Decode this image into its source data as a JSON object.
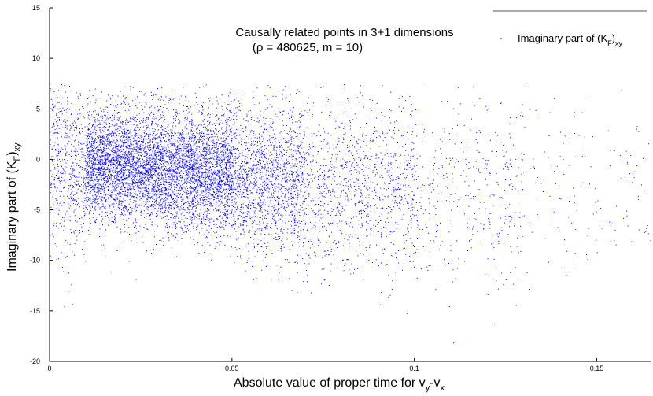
{
  "chart_data": {
    "type": "scatter",
    "title_line1": "Causally related points in 3+1 dimensions",
    "title_line2": "(ρ = 480625, m = 10)",
    "xlabel": {
      "main": "Absolute value of proper time for v",
      "sub1": "y",
      "mid": "-v",
      "sub2": "x"
    },
    "ylabel": {
      "main": "Imaginary part of (K",
      "sub1": "F",
      "mid": ")",
      "sub2": "xy"
    },
    "legend": {
      "main": "Imaginary part of (K",
      "sub1": "F",
      "mid": ")",
      "sub2": "xy",
      "position": "top-right"
    },
    "xlim": [
      0,
      0.165
    ],
    "ylim": [
      -20,
      15
    ],
    "x_ticks": [
      0,
      0.05,
      0.1,
      0.15
    ],
    "x_tick_labels": [
      "0",
      "0.05",
      "0.1",
      "0.15"
    ],
    "y_ticks": [
      -20,
      -15,
      -10,
      -5,
      0,
      5,
      10,
      15
    ],
    "y_tick_labels": [
      "-20",
      "-15",
      "-10",
      "-5",
      "0",
      "5",
      "10",
      "15"
    ],
    "grid": false,
    "marker_color": "#0000ff",
    "point_density": [
      {
        "x_range": [
          0.0,
          0.01
        ],
        "y_center": -1.0,
        "spread": 4.0,
        "weight": 600
      },
      {
        "x_range": [
          0.01,
          0.03
        ],
        "y_center": -0.6,
        "spread": 2.8,
        "weight": 3200
      },
      {
        "x_range": [
          0.03,
          0.05
        ],
        "y_center": -1.2,
        "spread": 3.0,
        "weight": 3000
      },
      {
        "x_range": [
          0.05,
          0.07
        ],
        "y_center": -2.0,
        "spread": 3.6,
        "weight": 1800
      },
      {
        "x_range": [
          0.07,
          0.1
        ],
        "y_center": -3.0,
        "spread": 4.2,
        "weight": 1200
      },
      {
        "x_range": [
          0.1,
          0.13
        ],
        "y_center": -3.2,
        "spread": 4.4,
        "weight": 450
      },
      {
        "x_range": [
          0.13,
          0.165
        ],
        "y_center": -2.5,
        "spread": 4.0,
        "weight": 150
      }
    ]
  }
}
